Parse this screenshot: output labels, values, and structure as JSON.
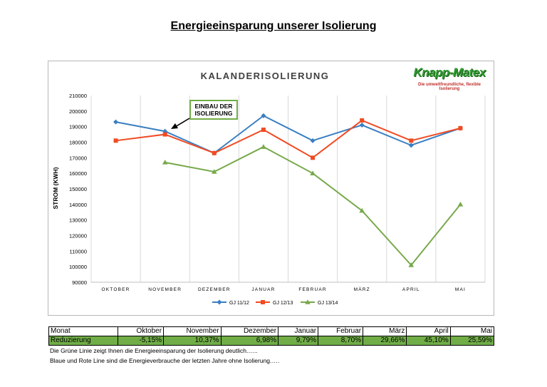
{
  "page_title": "Energieeinsparung unserer Isolierung",
  "logo": {
    "name": "Knapp-Matex",
    "tagline": "Die umweltfreundliche, flexible Isolierung"
  },
  "annotation": {
    "line1": "EINBAU DER",
    "line2": "ISOLIERUNG"
  },
  "chart_data": {
    "type": "line",
    "title": "KALANDERISOLIERUNG",
    "ylabel": "STROM (KWH)",
    "xlabel": "",
    "categories": [
      "OKTOBER",
      "NOVEMBER",
      "DEZEMBER",
      "JANUAR",
      "FEBRUAR",
      "MÄRZ",
      "APRIL",
      "MAI"
    ],
    "ylim": [
      90000,
      210000
    ],
    "yticks": [
      90000,
      100000,
      110000,
      120000,
      130000,
      140000,
      150000,
      160000,
      170000,
      180000,
      190000,
      200000,
      210000
    ],
    "grid": "vertical",
    "legend": "bottom",
    "series": [
      {
        "name": "GJ 11/12",
        "color": "#3a7fc1",
        "marker": "diamond",
        "values": [
          193000,
          187000,
          173000,
          197000,
          181000,
          191000,
          178000,
          189000
        ]
      },
      {
        "name": "GJ 12/13",
        "color": "#f04b23",
        "marker": "square",
        "values": [
          181000,
          185000,
          173000,
          188000,
          170000,
          194000,
          181000,
          189000
        ]
      },
      {
        "name": "GJ 13/14",
        "color": "#77a94a",
        "marker": "triangle",
        "values": [
          null,
          167000,
          161000,
          177000,
          160000,
          136000,
          101000,
          140000
        ]
      }
    ]
  },
  "table": {
    "header": [
      "Monat",
      "Oktober",
      "November",
      "Dezember",
      "Januar",
      "Februar",
      "März",
      "April",
      "Mai"
    ],
    "row": [
      "Reduzierung",
      "-5,15%",
      "10,37%",
      "6,98%",
      "9,79%",
      "8,70%",
      "29,66%",
      "45,10%",
      "25,59%"
    ]
  },
  "notes": [
    "Die Grüne Linie zeigt Ihnen die Energieeinsparung der Isolierung deutlich.…..",
    "Blaue und Rote Line sind die Energieverbrauche der letzten Jahre ohne Isolierung.…."
  ]
}
